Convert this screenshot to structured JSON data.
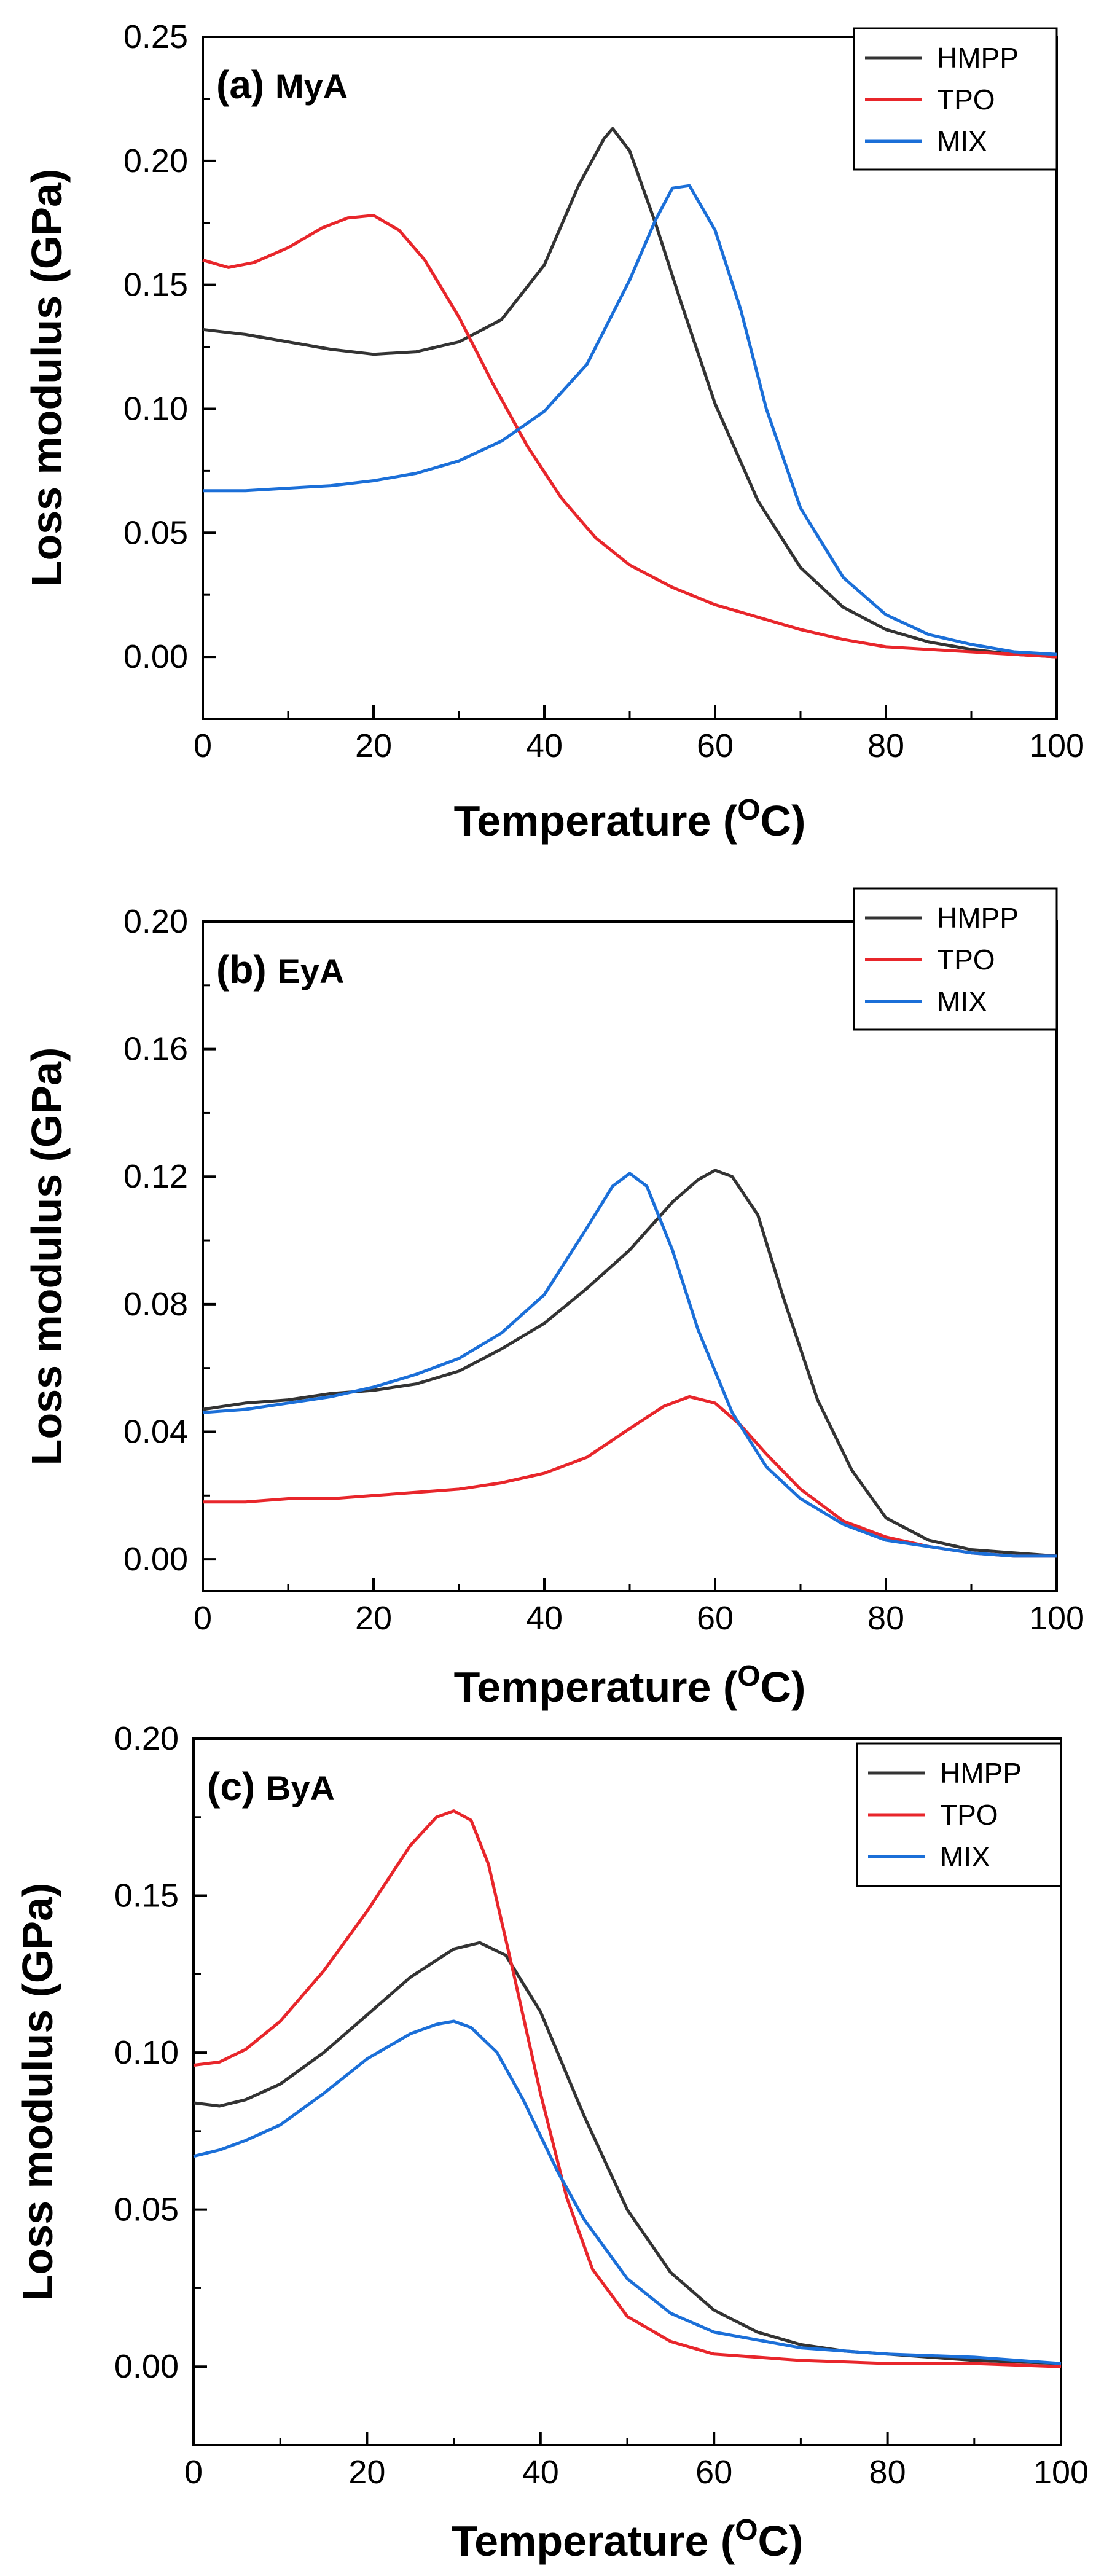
{
  "colors": {
    "HMPP": "#333333",
    "TPO": "#e8262b",
    "MIX": "#1b6fd8"
  },
  "chart_data": [
    {
      "type": "line",
      "panel_letter": "(a)",
      "sample": "MyA",
      "xlabel": "Temperature (",
      "xlabel_sup": "O",
      "xlabel_unit": "C)",
      "ylabel": "Loss modulus (GPa)",
      "xlim": [
        0,
        100
      ],
      "ylim": [
        -0.025,
        0.25
      ],
      "xticks": [
        "0",
        "20",
        "40",
        "60",
        "80",
        "100"
      ],
      "yticks": [
        "0.00",
        "0.05",
        "0.10",
        "0.15",
        "0.20",
        "0.25"
      ],
      "legend": [
        "HMPP",
        "TPO",
        "MIX"
      ],
      "series": [
        {
          "name": "HMPP",
          "x": [
            0,
            5,
            10,
            15,
            20,
            25,
            30,
            35,
            40,
            44,
            47,
            48,
            50,
            53,
            56,
            60,
            65,
            70,
            75,
            80,
            85,
            90,
            95,
            100
          ],
          "y": [
            0.132,
            0.13,
            0.127,
            0.124,
            0.122,
            0.123,
            0.127,
            0.136,
            0.158,
            0.19,
            0.209,
            0.213,
            0.204,
            0.175,
            0.143,
            0.102,
            0.063,
            0.036,
            0.02,
            0.011,
            0.006,
            0.003,
            0.001,
            0.0
          ]
        },
        {
          "name": "TPO",
          "x": [
            0,
            3,
            6,
            10,
            14,
            17,
            20,
            23,
            26,
            30,
            34,
            38,
            42,
            46,
            50,
            55,
            60,
            65,
            70,
            75,
            80,
            85,
            90,
            95,
            100
          ],
          "y": [
            0.16,
            0.157,
            0.159,
            0.165,
            0.173,
            0.177,
            0.178,
            0.172,
            0.16,
            0.137,
            0.11,
            0.085,
            0.064,
            0.048,
            0.037,
            0.028,
            0.021,
            0.016,
            0.011,
            0.007,
            0.004,
            0.003,
            0.002,
            0.001,
            0.0
          ]
        },
        {
          "name": "MIX",
          "x": [
            0,
            5,
            10,
            15,
            20,
            25,
            30,
            35,
            40,
            45,
            50,
            53,
            55,
            57,
            60,
            63,
            66,
            70,
            75,
            80,
            85,
            90,
            95,
            100
          ],
          "y": [
            0.067,
            0.067,
            0.068,
            0.069,
            0.071,
            0.074,
            0.079,
            0.087,
            0.099,
            0.118,
            0.152,
            0.176,
            0.189,
            0.19,
            0.172,
            0.14,
            0.1,
            0.06,
            0.032,
            0.017,
            0.009,
            0.005,
            0.002,
            0.001
          ]
        }
      ]
    },
    {
      "type": "line",
      "panel_letter": "(b)",
      "sample": "EyA",
      "xlabel": "Temperature (",
      "xlabel_sup": "O",
      "xlabel_unit": "C)",
      "ylabel": "Loss modulus (GPa)",
      "xlim": [
        0,
        100
      ],
      "ylim": [
        -0.01,
        0.2
      ],
      "xticks": [
        "0",
        "20",
        "40",
        "60",
        "80",
        "100"
      ],
      "yticks": [
        "0.00",
        "0.04",
        "0.08",
        "0.12",
        "0.16",
        "0.20"
      ],
      "legend": [
        "HMPP",
        "TPO",
        "MIX"
      ],
      "series": [
        {
          "name": "HMPP",
          "x": [
            0,
            5,
            10,
            15,
            20,
            25,
            30,
            35,
            40,
            45,
            50,
            55,
            58,
            60,
            62,
            65,
            68,
            72,
            76,
            80,
            85,
            90,
            95,
            100
          ],
          "y": [
            0.047,
            0.049,
            0.05,
            0.052,
            0.053,
            0.055,
            0.059,
            0.066,
            0.074,
            0.085,
            0.097,
            0.112,
            0.119,
            0.122,
            0.12,
            0.108,
            0.082,
            0.05,
            0.028,
            0.013,
            0.006,
            0.003,
            0.002,
            0.001
          ]
        },
        {
          "name": "TPO",
          "x": [
            0,
            5,
            10,
            15,
            20,
            25,
            30,
            35,
            40,
            45,
            50,
            54,
            57,
            60,
            63,
            66,
            70,
            75,
            80,
            85,
            90,
            95,
            100
          ],
          "y": [
            0.018,
            0.018,
            0.019,
            0.019,
            0.02,
            0.021,
            0.022,
            0.024,
            0.027,
            0.032,
            0.041,
            0.048,
            0.051,
            0.049,
            0.042,
            0.033,
            0.022,
            0.012,
            0.007,
            0.004,
            0.002,
            0.001,
            0.001
          ]
        },
        {
          "name": "MIX",
          "x": [
            0,
            5,
            10,
            15,
            20,
            25,
            30,
            35,
            40,
            45,
            48,
            50,
            52,
            55,
            58,
            62,
            66,
            70,
            75,
            80,
            85,
            90,
            95,
            100
          ],
          "y": [
            0.046,
            0.047,
            0.049,
            0.051,
            0.054,
            0.058,
            0.063,
            0.071,
            0.083,
            0.104,
            0.117,
            0.121,
            0.117,
            0.097,
            0.072,
            0.046,
            0.029,
            0.019,
            0.011,
            0.006,
            0.004,
            0.002,
            0.001,
            0.001
          ]
        }
      ]
    },
    {
      "type": "line",
      "panel_letter": "(c)",
      "sample": "ByA",
      "xlabel": "Temperature (",
      "xlabel_sup": "O",
      "xlabel_unit": "C)",
      "ylabel": "Loss modulus (GPa)",
      "xlim": [
        0,
        100
      ],
      "ylim": [
        -0.025,
        0.2
      ],
      "xticks": [
        "0",
        "20",
        "40",
        "60",
        "80",
        "100"
      ],
      "yticks": [
        "0.00",
        "0.05",
        "0.10",
        "0.15",
        "0.20"
      ],
      "legend": [
        "HMPP",
        "TPO",
        "MIX"
      ],
      "series": [
        {
          "name": "HMPP",
          "x": [
            0,
            3,
            6,
            10,
            15,
            20,
            25,
            30,
            33,
            36,
            40,
            45,
            50,
            55,
            60,
            65,
            70,
            75,
            80,
            90,
            100
          ],
          "y": [
            0.084,
            0.083,
            0.085,
            0.09,
            0.1,
            0.112,
            0.124,
            0.133,
            0.135,
            0.131,
            0.113,
            0.08,
            0.05,
            0.03,
            0.018,
            0.011,
            0.007,
            0.005,
            0.004,
            0.002,
            0.001
          ]
        },
        {
          "name": "TPO",
          "x": [
            0,
            3,
            6,
            10,
            15,
            20,
            25,
            28,
            30,
            32,
            34,
            37,
            40,
            43,
            46,
            50,
            55,
            60,
            70,
            80,
            90,
            100
          ],
          "y": [
            0.096,
            0.097,
            0.101,
            0.11,
            0.126,
            0.145,
            0.166,
            0.175,
            0.177,
            0.174,
            0.16,
            0.124,
            0.087,
            0.054,
            0.031,
            0.016,
            0.008,
            0.004,
            0.002,
            0.001,
            0.001,
            0.0
          ]
        },
        {
          "name": "MIX",
          "x": [
            0,
            3,
            6,
            10,
            15,
            20,
            25,
            28,
            30,
            32,
            35,
            38,
            42,
            45,
            50,
            55,
            60,
            70,
            80,
            90,
            100
          ],
          "y": [
            0.067,
            0.069,
            0.072,
            0.077,
            0.087,
            0.098,
            0.106,
            0.109,
            0.11,
            0.108,
            0.1,
            0.085,
            0.062,
            0.047,
            0.028,
            0.017,
            0.011,
            0.006,
            0.004,
            0.003,
            0.001
          ]
        }
      ]
    }
  ]
}
